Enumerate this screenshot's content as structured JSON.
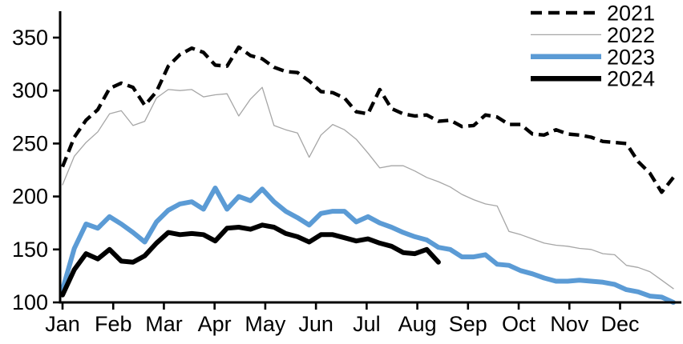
{
  "chart_data": {
    "type": "line",
    "title": "",
    "xlabel": "",
    "ylabel": "",
    "x_unit": "weeks (weekly observations across one year)",
    "x_ticklabels": [
      "Jan",
      "Feb",
      "Mar",
      "Apr",
      "May",
      "Jun",
      "Jul",
      "Aug",
      "Sep",
      "Oct",
      "Nov",
      "Dec"
    ],
    "yticks": [
      100,
      150,
      200,
      250,
      300,
      350
    ],
    "ylim": [
      100,
      375
    ],
    "grid": false,
    "legend_position": "top-right",
    "series": [
      {
        "name": "2021",
        "color": "#000000",
        "style": "dashed",
        "width": 4.4,
        "values": [
          228,
          256,
          272,
          282,
          302,
          307,
          303,
          286,
          299,
          323,
          334,
          340,
          336,
          324,
          323,
          341,
          333,
          330,
          322,
          318,
          317,
          309,
          299,
          298,
          293,
          280,
          278,
          301,
          283,
          278,
          276,
          277,
          271,
          272,
          266,
          267,
          277,
          275,
          268,
          268,
          259,
          258,
          263,
          259,
          258,
          256,
          252,
          251,
          250,
          233,
          222,
          204,
          218
        ]
      },
      {
        "name": "2022",
        "color": "#a6a6a6",
        "style": "solid",
        "width": 1.3,
        "values": [
          211,
          238,
          251,
          261,
          278,
          281,
          267,
          271,
          293,
          301,
          300,
          301,
          294,
          296,
          297,
          276,
          292,
          303,
          267,
          263,
          260,
          237,
          258,
          268,
          263,
          254,
          241,
          227,
          229,
          229,
          224,
          218,
          214,
          209,
          202,
          197,
          193,
          191,
          167,
          164,
          160,
          156,
          154,
          153,
          151,
          150,
          146,
          145,
          135,
          133,
          129,
          121,
          113
        ]
      },
      {
        "name": "2023",
        "color": "#5B9BD5",
        "style": "solid",
        "width": 6,
        "values": [
          112,
          151,
          174,
          170,
          181,
          174,
          166,
          157,
          176,
          187,
          193,
          195,
          188,
          208,
          188,
          200,
          196,
          207,
          195,
          186,
          180,
          173,
          184,
          186,
          186,
          176,
          181,
          175,
          171,
          166,
          162,
          159,
          152,
          150,
          143,
          143,
          145,
          136,
          135,
          130,
          127,
          123,
          120,
          120,
          121,
          120,
          119,
          117,
          112,
          110,
          106,
          105,
          100
        ]
      },
      {
        "name": "2024",
        "color": "#000000",
        "style": "solid",
        "width": 6,
        "values": [
          107,
          131,
          146,
          141,
          150,
          139,
          138,
          144,
          156,
          166,
          164,
          165,
          164,
          158,
          170,
          171,
          169,
          173,
          171,
          165,
          162,
          157,
          164,
          164,
          161,
          158,
          160,
          156,
          153,
          147,
          146,
          150,
          138
        ]
      }
    ]
  }
}
